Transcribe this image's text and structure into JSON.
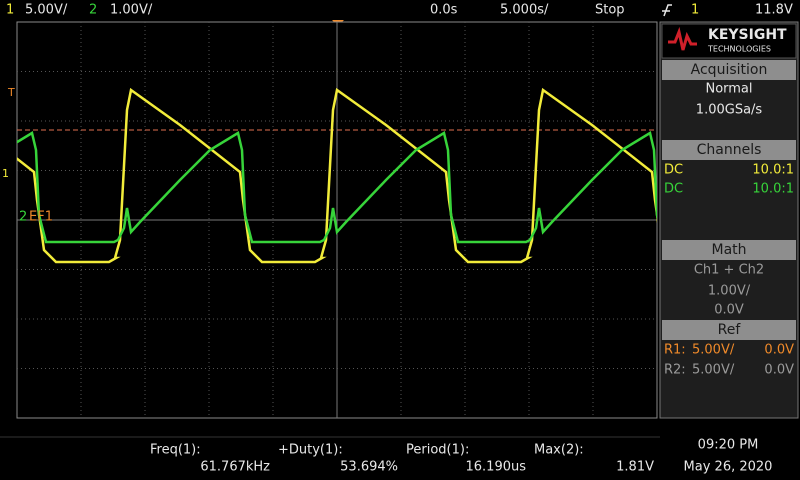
{
  "header": {
    "ch1_label": "1",
    "ch1_scale": "5.00V/",
    "ch2_label": "2",
    "ch2_scale": "1.00V/",
    "time_offset": "0.0s",
    "time_scale": "5.000s/",
    "run_state": "Stop",
    "trigger_channel": "1",
    "trigger_level": "11.8V"
  },
  "markers": {
    "trigger": "T",
    "ch1": "1",
    "ch2": "2",
    "ref": "EF1"
  },
  "brand": {
    "name": "KEYSIGHT",
    "sub": "TECHNOLOGIES"
  },
  "panel": {
    "acquisition": {
      "title": "Acquisition",
      "mode": "Normal",
      "rate": "1.00GSa/s"
    },
    "channels": {
      "title": "Channels",
      "rows": [
        [
          "DC",
          "10.0:1"
        ],
        [
          "DC",
          "10.0:1"
        ]
      ]
    },
    "math": {
      "title": "Math",
      "function": "Ch1 + Ch2",
      "scale": "1.00V/",
      "offset": "0.0V"
    },
    "ref": {
      "title": "Ref",
      "rows": [
        [
          "R1:",
          "5.00V/",
          "0.0V"
        ],
        [
          "R2:",
          "5.00V/",
          "0.0V"
        ]
      ]
    }
  },
  "measurements": [
    {
      "label": "Freq(1):",
      "value": "61.767kHz"
    },
    {
      "label": "+Duty(1):",
      "value": "53.694%"
    },
    {
      "label": "Period(1):",
      "value": "16.190us"
    },
    {
      "label": "Max(2):",
      "value": "1.81V"
    }
  ],
  "clock": {
    "time": "09:20 PM",
    "date": "May 26, 2020"
  }
}
